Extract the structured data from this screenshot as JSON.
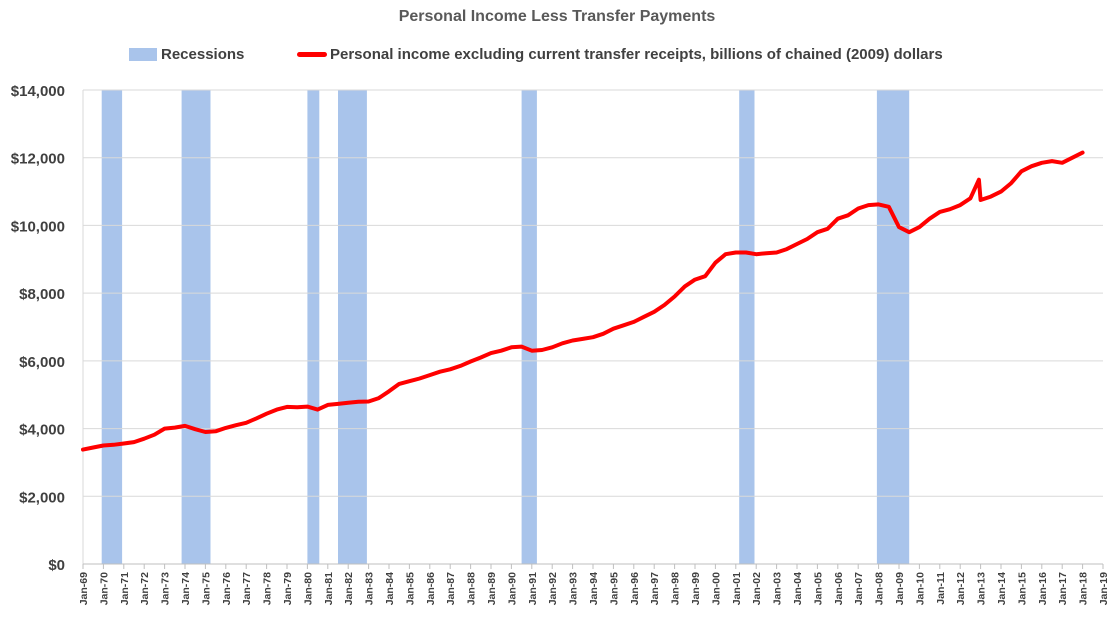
{
  "chart_data": {
    "type": "line",
    "title": "Personal Income Less Transfer Payments",
    "xlabel": "",
    "ylabel": "",
    "ylim": [
      0,
      14000
    ],
    "xlim": [
      "Jan-69",
      "Jan-19"
    ],
    "grid": "horizontal",
    "legend_position": "top",
    "y_ticks": [
      "$0",
      "$2,000",
      "$4,000",
      "$6,000",
      "$8,000",
      "$10,000",
      "$12,000",
      "$14,000"
    ],
    "x_ticks": [
      "Jan-69",
      "Jan-70",
      "Jan-71",
      "Jan-72",
      "Jan-73",
      "Jan-74",
      "Jan-75",
      "Jan-76",
      "Jan-77",
      "Jan-78",
      "Jan-79",
      "Jan-80",
      "Jan-81",
      "Jan-82",
      "Jan-83",
      "Jan-84",
      "Jan-85",
      "Jan-86",
      "Jan-87",
      "Jan-88",
      "Jan-89",
      "Jan-90",
      "Jan-91",
      "Jan-92",
      "Jan-93",
      "Jan-94",
      "Jan-95",
      "Jan-96",
      "Jan-97",
      "Jan-98",
      "Jan-99",
      "Jan-00",
      "Jan-01",
      "Jan-02",
      "Jan-03",
      "Jan-04",
      "Jan-05",
      "Jan-06",
      "Jan-07",
      "Jan-08",
      "Jan-09",
      "Jan-10",
      "Jan-11",
      "Jan-12",
      "Jan-13",
      "Jan-14",
      "Jan-15",
      "Jan-16",
      "Jan-17",
      "Jan-18",
      "Jan-19"
    ],
    "recessions": {
      "name": "Recessions",
      "color": "#A9C4EB",
      "periods": [
        [
          "Dec-69",
          "Nov-70"
        ],
        [
          "Nov-73",
          "Mar-75"
        ],
        [
          "Jan-80",
          "Jul-80"
        ],
        [
          "Jul-81",
          "Nov-82"
        ],
        [
          "Jul-90",
          "Mar-91"
        ],
        [
          "Mar-01",
          "Nov-01"
        ],
        [
          "Dec-07",
          "Jun-09"
        ]
      ]
    },
    "series": [
      {
        "name": "Personal income excluding current transfer receipts, billions of chained (2009) dollars",
        "color": "#FF0000",
        "x": [
          "Jan-69",
          "Jul-69",
          "Jan-70",
          "Jul-70",
          "Jan-71",
          "Jul-71",
          "Jan-72",
          "Jul-72",
          "Jan-73",
          "Jul-73",
          "Jan-74",
          "Jul-74",
          "Jan-75",
          "Jul-75",
          "Jan-76",
          "Jul-76",
          "Jan-77",
          "Jul-77",
          "Jan-78",
          "Jul-78",
          "Jan-79",
          "Jul-79",
          "Jan-80",
          "Jul-80",
          "Jan-81",
          "Jul-81",
          "Jan-82",
          "Jul-82",
          "Jan-83",
          "Jul-83",
          "Jan-84",
          "Jul-84",
          "Jan-85",
          "Jul-85",
          "Jan-86",
          "Jul-86",
          "Jan-87",
          "Jul-87",
          "Jan-88",
          "Jul-88",
          "Jan-89",
          "Jul-89",
          "Jan-90",
          "Jul-90",
          "Jan-91",
          "Jul-91",
          "Jan-92",
          "Jul-92",
          "Jan-93",
          "Jul-93",
          "Jan-94",
          "Jul-94",
          "Jan-95",
          "Jul-95",
          "Jan-96",
          "Jul-96",
          "Jan-97",
          "Jul-97",
          "Jan-98",
          "Jul-98",
          "Jan-99",
          "Jul-99",
          "Jan-00",
          "Jul-00",
          "Jan-01",
          "Jul-01",
          "Jan-02",
          "Jul-02",
          "Jan-03",
          "Jul-03",
          "Jan-04",
          "Jul-04",
          "Jan-05",
          "Jul-05",
          "Jan-06",
          "Jul-06",
          "Jan-07",
          "Jul-07",
          "Jan-08",
          "Jul-08",
          "Jan-09",
          "Jul-09",
          "Jan-10",
          "Jul-10",
          "Jan-11",
          "Jul-11",
          "Jan-12",
          "Jul-12",
          "Dec-12",
          "Jan-13",
          "Jul-13",
          "Jan-14",
          "Jul-14",
          "Jan-15",
          "Jul-15",
          "Jan-16",
          "Jul-16",
          "Jan-17",
          "Jul-17",
          "Jan-18"
        ],
        "values": [
          3380,
          3440,
          3500,
          3520,
          3560,
          3600,
          3700,
          3820,
          4000,
          4030,
          4080,
          3980,
          3900,
          3920,
          4020,
          4100,
          4170,
          4300,
          4440,
          4560,
          4640,
          4630,
          4650,
          4560,
          4700,
          4730,
          4760,
          4790,
          4800,
          4900,
          5100,
          5320,
          5400,
          5480,
          5580,
          5680,
          5750,
          5850,
          5980,
          6100,
          6230,
          6300,
          6400,
          6420,
          6300,
          6320,
          6400,
          6520,
          6600,
          6650,
          6700,
          6800,
          6950,
          7050,
          7150,
          7300,
          7450,
          7650,
          7900,
          8200,
          8400,
          8500,
          8900,
          9150,
          9200,
          9200,
          9150,
          9180,
          9200,
          9300,
          9450,
          9600,
          9800,
          9900,
          10200,
          10300,
          10500,
          10600,
          10620,
          10550,
          9950,
          9800,
          9950,
          10200,
          10400,
          10480,
          10600,
          10800,
          11350,
          10750,
          10850,
          11000,
          11250,
          11600,
          11750,
          11850,
          11900,
          11850,
          12000,
          12150
        ]
      }
    ]
  }
}
